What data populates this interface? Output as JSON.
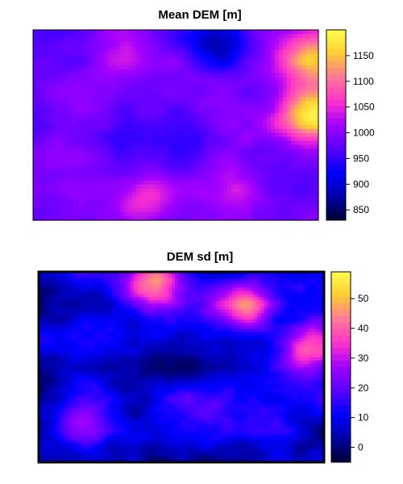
{
  "chart_data": [
    {
      "type": "heatmap",
      "title": "Mean DEM [m]",
      "xlabel": "",
      "ylabel": "",
      "colorbar": {
        "ticks": [
          850,
          900,
          950,
          1000,
          1050,
          1100,
          1150
        ],
        "range": [
          830,
          1200
        ],
        "palette": [
          "#000033",
          "#0000a8",
          "#0000ff",
          "#5a00ff",
          "#a000ff",
          "#ff33cc",
          "#ff7799",
          "#ffcc33",
          "#ffff4d"
        ]
      },
      "field": {
        "min": 830,
        "max": 1200,
        "base": 985,
        "description_points": [
          {
            "x": 0.65,
            "y": 0.05,
            "value": 880
          },
          {
            "x": 0.98,
            "y": 0.45,
            "value": 1180
          },
          {
            "x": 0.98,
            "y": 0.15,
            "value": 1150
          },
          {
            "x": 0.7,
            "y": 0.85,
            "value": 1060
          },
          {
            "x": 0.4,
            "y": 0.9,
            "value": 1040
          },
          {
            "x": 0.3,
            "y": 0.6,
            "value": 960
          },
          {
            "x": 0.55,
            "y": 0.55,
            "value": 950
          },
          {
            "x": 0.1,
            "y": 0.3,
            "value": 1000
          },
          {
            "x": 0.3,
            "y": 0.12,
            "value": 1040
          }
        ]
      }
    },
    {
      "type": "heatmap",
      "title": "DEM sd [m]",
      "xlabel": "",
      "ylabel": "",
      "colorbar": {
        "ticks": [
          0,
          10,
          20,
          30,
          40,
          50
        ],
        "range": [
          -5,
          59
        ],
        "palette": [
          "#000033",
          "#0000a8",
          "#0000ff",
          "#5a00ff",
          "#a000ff",
          "#ff33cc",
          "#ff7799",
          "#ffcc33",
          "#ffff4d"
        ]
      },
      "field": {
        "min": -5,
        "max": 59,
        "base": 8,
        "description_points": [
          {
            "x": 0.4,
            "y": 0.05,
            "value": 48
          },
          {
            "x": 0.72,
            "y": 0.18,
            "value": 42
          },
          {
            "x": 0.95,
            "y": 0.4,
            "value": 36
          },
          {
            "x": 0.15,
            "y": 0.8,
            "value": 20
          },
          {
            "x": 0.6,
            "y": 0.75,
            "value": 18
          },
          {
            "x": 0.35,
            "y": 0.55,
            "value": 4
          }
        ]
      }
    }
  ]
}
